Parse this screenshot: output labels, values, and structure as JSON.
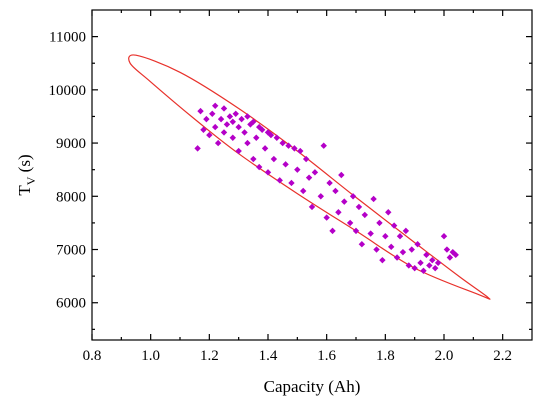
{
  "chart_data": {
    "type": "scatter",
    "xlabel": "Capacity (Ah)",
    "ylabel_main": "T",
    "ylabel_sub": "V",
    "ylabel_unit": " (s)",
    "xlim": [
      0.8,
      2.3
    ],
    "ylim": [
      5300,
      11500
    ],
    "xticks": [
      0.8,
      1.0,
      1.2,
      1.4,
      1.6,
      1.8,
      2.0,
      2.2
    ],
    "xtick_labels": [
      "0.8",
      "1.0",
      "1.2",
      "1.4",
      "1.6",
      "1.8",
      "2.0",
      "2.2"
    ],
    "yticks": [
      6000,
      7000,
      8000,
      9000,
      10000,
      11000
    ],
    "ytick_labels": [
      "6000",
      "7000",
      "8000",
      "9000",
      "10000",
      "11000"
    ],
    "grid": false,
    "legend": "none",
    "marker_color": "#b400c8",
    "ellipse_color": "#e8312b",
    "ellipse_points": [
      [
        0.95,
        10650
      ],
      [
        1.1,
        10330
      ],
      [
        1.3,
        9650
      ],
      [
        1.5,
        8850
      ],
      [
        1.7,
        7980
      ],
      [
        1.9,
        7130
      ],
      [
        2.05,
        6500
      ],
      [
        2.15,
        6100
      ],
      [
        2.12,
        6150
      ],
      [
        1.9,
        6650
      ],
      [
        1.7,
        7350
      ],
      [
        1.5,
        8050
      ],
      [
        1.3,
        8800
      ],
      [
        1.15,
        9450
      ],
      [
        1.0,
        10150
      ],
      [
        0.93,
        10500
      ]
    ],
    "points": [
      [
        1.16,
        8900
      ],
      [
        1.17,
        9600
      ],
      [
        1.18,
        9250
      ],
      [
        1.19,
        9450
      ],
      [
        1.2,
        9150
      ],
      [
        1.21,
        9550
      ],
      [
        1.22,
        9300
      ],
      [
        1.22,
        9700
      ],
      [
        1.23,
        9000
      ],
      [
        1.24,
        9450
      ],
      [
        1.25,
        9200
      ],
      [
        1.25,
        9650
      ],
      [
        1.26,
        9350
      ],
      [
        1.27,
        9500
      ],
      [
        1.28,
        9100
      ],
      [
        1.28,
        9400
      ],
      [
        1.29,
        9550
      ],
      [
        1.3,
        9300
      ],
      [
        1.3,
        8850
      ],
      [
        1.31,
        9450
      ],
      [
        1.32,
        9200
      ],
      [
        1.33,
        9500
      ],
      [
        1.33,
        9000
      ],
      [
        1.34,
        9350
      ],
      [
        1.35,
        8700
      ],
      [
        1.35,
        9400
      ],
      [
        1.36,
        9100
      ],
      [
        1.37,
        9300
      ],
      [
        1.37,
        8550
      ],
      [
        1.38,
        9250
      ],
      [
        1.39,
        8900
      ],
      [
        1.4,
        9200
      ],
      [
        1.4,
        8450
      ],
      [
        1.41,
        9150
      ],
      [
        1.42,
        8700
      ],
      [
        1.43,
        9100
      ],
      [
        1.44,
        8300
      ],
      [
        1.45,
        9000
      ],
      [
        1.46,
        8600
      ],
      [
        1.47,
        8950
      ],
      [
        1.48,
        8250
      ],
      [
        1.49,
        8900
      ],
      [
        1.5,
        8500
      ],
      [
        1.51,
        8850
      ],
      [
        1.52,
        8100
      ],
      [
        1.53,
        8700
      ],
      [
        1.54,
        8350
      ],
      [
        1.55,
        7800
      ],
      [
        1.56,
        8450
      ],
      [
        1.58,
        8000
      ],
      [
        1.59,
        8950
      ],
      [
        1.6,
        7600
      ],
      [
        1.61,
        8250
      ],
      [
        1.62,
        7350
      ],
      [
        1.63,
        8100
      ],
      [
        1.64,
        7700
      ],
      [
        1.65,
        8400
      ],
      [
        1.66,
        7900
      ],
      [
        1.68,
        7500
      ],
      [
        1.69,
        8000
      ],
      [
        1.7,
        7350
      ],
      [
        1.71,
        7800
      ],
      [
        1.72,
        7100
      ],
      [
        1.73,
        7650
      ],
      [
        1.75,
        7300
      ],
      [
        1.76,
        7950
      ],
      [
        1.77,
        7000
      ],
      [
        1.78,
        7500
      ],
      [
        1.79,
        6800
      ],
      [
        1.8,
        7250
      ],
      [
        1.81,
        7700
      ],
      [
        1.82,
        7050
      ],
      [
        1.83,
        7450
      ],
      [
        1.84,
        6850
      ],
      [
        1.85,
        7250
      ],
      [
        1.86,
        6950
      ],
      [
        1.87,
        7350
      ],
      [
        1.88,
        6700
      ],
      [
        1.89,
        7000
      ],
      [
        1.9,
        6650
      ],
      [
        1.91,
        7100
      ],
      [
        1.92,
        6750
      ],
      [
        1.93,
        6600
      ],
      [
        1.94,
        6900
      ],
      [
        1.95,
        6700
      ],
      [
        1.96,
        6800
      ],
      [
        1.97,
        6650
      ],
      [
        1.98,
        6750
      ],
      [
        2.0,
        7250
      ],
      [
        2.01,
        7000
      ],
      [
        2.02,
        6850
      ],
      [
        2.03,
        6950
      ],
      [
        2.04,
        6900
      ]
    ]
  }
}
